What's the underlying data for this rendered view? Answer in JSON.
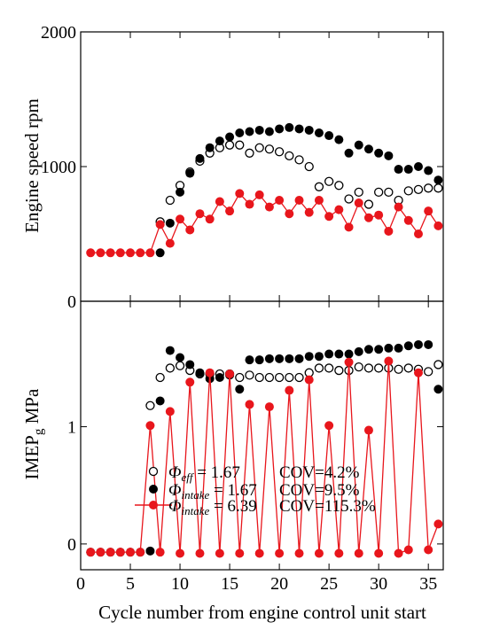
{
  "chart_data": [
    {
      "type": "scatter",
      "panel": "top",
      "xlabel": "",
      "ylabel": "Engine speed rpm",
      "xlim": [
        0,
        36
      ],
      "ylim": [
        0,
        2000
      ],
      "yticks": [
        0,
        1000,
        2000
      ],
      "yticklabels": [
        "0",
        "1000",
        "2000"
      ],
      "series": [
        {
          "name": "Φeff = 1.67",
          "marker": "open-circle",
          "color": "#000000",
          "points": [
            [
              8,
              590
            ],
            [
              9,
              750
            ],
            [
              10,
              860
            ],
            [
              11,
              960
            ],
            [
              12,
              1040
            ],
            [
              13,
              1100
            ],
            [
              14,
              1140
            ],
            [
              15,
              1160
            ],
            [
              16,
              1160
            ],
            [
              17,
              1100
            ],
            [
              18,
              1140
            ],
            [
              19,
              1130
            ],
            [
              20,
              1110
            ],
            [
              21,
              1080
            ],
            [
              22,
              1050
            ],
            [
              23,
              1000
            ],
            [
              24,
              850
            ],
            [
              25,
              890
            ],
            [
              26,
              860
            ],
            [
              27,
              760
            ],
            [
              28,
              810
            ],
            [
              29,
              720
            ],
            [
              30,
              810
            ],
            [
              31,
              810
            ],
            [
              32,
              750
            ],
            [
              33,
              820
            ],
            [
              34,
              830
            ],
            [
              35,
              840
            ],
            [
              36,
              840
            ]
          ]
        },
        {
          "name": "Φintake = 1.67",
          "marker": "filled-circle",
          "color": "#000000",
          "points": [
            [
              8,
              360
            ],
            [
              9,
              580
            ],
            [
              10,
              810
            ],
            [
              11,
              950
            ],
            [
              12,
              1060
            ],
            [
              13,
              1140
            ],
            [
              14,
              1190
            ],
            [
              15,
              1220
            ],
            [
              16,
              1250
            ],
            [
              17,
              1260
            ],
            [
              18,
              1270
            ],
            [
              19,
              1260
            ],
            [
              20,
              1280
            ],
            [
              21,
              1290
            ],
            [
              22,
              1280
            ],
            [
              23,
              1270
            ],
            [
              24,
              1250
            ],
            [
              25,
              1230
            ],
            [
              26,
              1200
            ],
            [
              27,
              1100
            ],
            [
              28,
              1160
            ],
            [
              29,
              1130
            ],
            [
              30,
              1100
            ],
            [
              31,
              1080
            ],
            [
              32,
              980
            ],
            [
              33,
              980
            ],
            [
              34,
              1000
            ],
            [
              35,
              970
            ],
            [
              36,
              900
            ]
          ]
        },
        {
          "name": "Φintake = 6.39",
          "marker": "filled-circle-line",
          "color": "#e8161c",
          "points": [
            [
              1,
              360
            ],
            [
              2,
              360
            ],
            [
              3,
              360
            ],
            [
              4,
              360
            ],
            [
              5,
              360
            ],
            [
              6,
              360
            ],
            [
              7,
              360
            ],
            [
              8,
              570
            ],
            [
              9,
              430
            ],
            [
              10,
              610
            ],
            [
              11,
              530
            ],
            [
              12,
              650
            ],
            [
              13,
              610
            ],
            [
              14,
              740
            ],
            [
              15,
              670
            ],
            [
              16,
              800
            ],
            [
              17,
              720
            ],
            [
              18,
              790
            ],
            [
              19,
              700
            ],
            [
              20,
              750
            ],
            [
              21,
              650
            ],
            [
              22,
              750
            ],
            [
              23,
              660
            ],
            [
              24,
              750
            ],
            [
              25,
              630
            ],
            [
              26,
              680
            ],
            [
              27,
              550
            ],
            [
              28,
              730
            ],
            [
              29,
              620
            ],
            [
              30,
              640
            ],
            [
              31,
              520
            ],
            [
              32,
              700
            ],
            [
              33,
              600
            ],
            [
              34,
              500
            ],
            [
              35,
              670
            ],
            [
              36,
              560
            ]
          ]
        }
      ]
    },
    {
      "type": "scatter",
      "panel": "bottom",
      "xlabel": "Cycle number from engine control unit start",
      "ylabel_main": "IMEP",
      "ylabel_sub": "g",
      "ylabel_unit": " MPa",
      "xlim": [
        0,
        36.5
      ],
      "ylim": [
        -0.22,
        2.07
      ],
      "xticks": [
        0,
        5,
        10,
        15,
        20,
        25,
        30,
        35
      ],
      "xticklabels": [
        "0",
        "5",
        "10",
        "15",
        "20",
        "25",
        "30",
        "35"
      ],
      "yticks": [
        0,
        1
      ],
      "yticklabels": [
        "0",
        "1"
      ],
      "series": [
        {
          "name": "Φeff = 1.67",
          "marker": "open-circle",
          "color": "#000000",
          "points": [
            [
              7,
              1.18
            ],
            [
              8,
              1.42
            ],
            [
              9,
              1.5
            ],
            [
              10,
              1.52
            ],
            [
              11,
              1.48
            ],
            [
              12,
              1.45
            ],
            [
              13,
              1.45
            ],
            [
              14,
              1.45
            ],
            [
              15,
              1.45
            ],
            [
              16,
              1.42
            ],
            [
              17,
              1.44
            ],
            [
              18,
              1.42
            ],
            [
              19,
              1.42
            ],
            [
              20,
              1.42
            ],
            [
              21,
              1.42
            ],
            [
              22,
              1.42
            ],
            [
              23,
              1.46
            ],
            [
              24,
              1.5
            ],
            [
              25,
              1.5
            ],
            [
              26,
              1.48
            ],
            [
              27,
              1.48
            ],
            [
              28,
              1.51
            ],
            [
              29,
              1.5
            ],
            [
              30,
              1.5
            ],
            [
              31,
              1.5
            ],
            [
              32,
              1.49
            ],
            [
              33,
              1.5
            ],
            [
              34,
              1.49
            ],
            [
              35,
              1.47
            ],
            [
              36,
              1.53
            ]
          ]
        },
        {
          "name": "Φintake = 1.67",
          "marker": "filled-circle",
          "color": "#000000",
          "points": [
            [
              1,
              -0.07
            ],
            [
              2,
              -0.07
            ],
            [
              3,
              -0.07
            ],
            [
              4,
              -0.07
            ],
            [
              5,
              -0.07
            ],
            [
              6,
              -0.07
            ],
            [
              7,
              -0.06
            ],
            [
              8,
              1.22
            ],
            [
              9,
              1.65
            ],
            [
              10,
              1.59
            ],
            [
              11,
              1.53
            ],
            [
              12,
              1.46
            ],
            [
              13,
              1.41
            ],
            [
              14,
              1.42
            ],
            [
              15,
              1.44
            ],
            [
              16,
              1.32
            ],
            [
              17,
              1.57
            ],
            [
              18,
              1.57
            ],
            [
              19,
              1.58
            ],
            [
              20,
              1.58
            ],
            [
              21,
              1.58
            ],
            [
              22,
              1.58
            ],
            [
              23,
              1.6
            ],
            [
              24,
              1.6
            ],
            [
              25,
              1.62
            ],
            [
              26,
              1.62
            ],
            [
              27,
              1.62
            ],
            [
              28,
              1.64
            ],
            [
              29,
              1.66
            ],
            [
              30,
              1.66
            ],
            [
              31,
              1.67
            ],
            [
              32,
              1.67
            ],
            [
              33,
              1.69
            ],
            [
              34,
              1.7
            ],
            [
              35,
              1.7
            ],
            [
              36,
              1.32
            ]
          ]
        },
        {
          "name": "Φintake = 6.39",
          "marker": "filled-circle-line",
          "color": "#e8161c",
          "points": [
            [
              1,
              -0.07
            ],
            [
              2,
              -0.07
            ],
            [
              3,
              -0.07
            ],
            [
              4,
              -0.07
            ],
            [
              5,
              -0.07
            ],
            [
              6,
              -0.07
            ],
            [
              7,
              1.01
            ],
            [
              8,
              -0.07
            ],
            [
              9,
              1.13
            ],
            [
              10,
              -0.08
            ],
            [
              11,
              1.38
            ],
            [
              12,
              -0.08
            ],
            [
              13,
              1.46
            ],
            [
              14,
              -0.08
            ],
            [
              15,
              1.45
            ],
            [
              16,
              -0.08
            ],
            [
              17,
              1.19
            ],
            [
              18,
              -0.08
            ],
            [
              19,
              1.17
            ],
            [
              20,
              -0.08
            ],
            [
              21,
              1.31
            ],
            [
              22,
              -0.08
            ],
            [
              23,
              1.4
            ],
            [
              24,
              -0.08
            ],
            [
              25,
              1.01
            ],
            [
              26,
              -0.08
            ],
            [
              27,
              1.55
            ],
            [
              28,
              -0.08
            ],
            [
              29,
              0.97
            ],
            [
              30,
              -0.08
            ],
            [
              31,
              1.56
            ],
            [
              32,
              -0.08
            ],
            [
              33,
              -0.05
            ],
            [
              34,
              1.46
            ],
            [
              35,
              -0.05
            ],
            [
              36,
              0.17
            ]
          ]
        }
      ],
      "legend": {
        "placement": "lower-left",
        "entries": [
          {
            "symbol": "Φ",
            "sub": "eff",
            "value": " = 1.67",
            "cov": "COV=4.2%",
            "marker": "open-circle",
            "color": "#000000"
          },
          {
            "symbol": "Φ",
            "sub": "intake",
            "value": " = 1.67",
            "cov": "COV=9.5%",
            "marker": "filled-circle",
            "color": "#000000"
          },
          {
            "symbol": "Φ",
            "sub": "intake",
            "value": " = 6.39",
            "cov": "COV=115.3%",
            "marker": "filled-circle-line",
            "color": "#e8161c"
          }
        ]
      }
    }
  ]
}
